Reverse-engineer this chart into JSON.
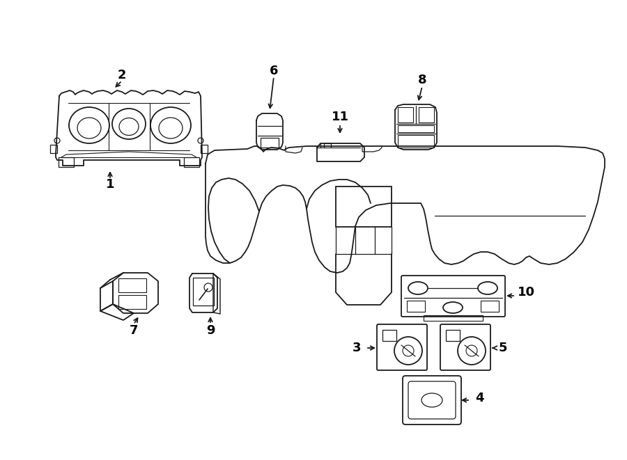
{
  "bg_color": "#ffffff",
  "line_color": "#1a1a1a",
  "line_width": 1.3,
  "fig_width": 9.0,
  "fig_height": 6.61,
  "dpi": 100
}
